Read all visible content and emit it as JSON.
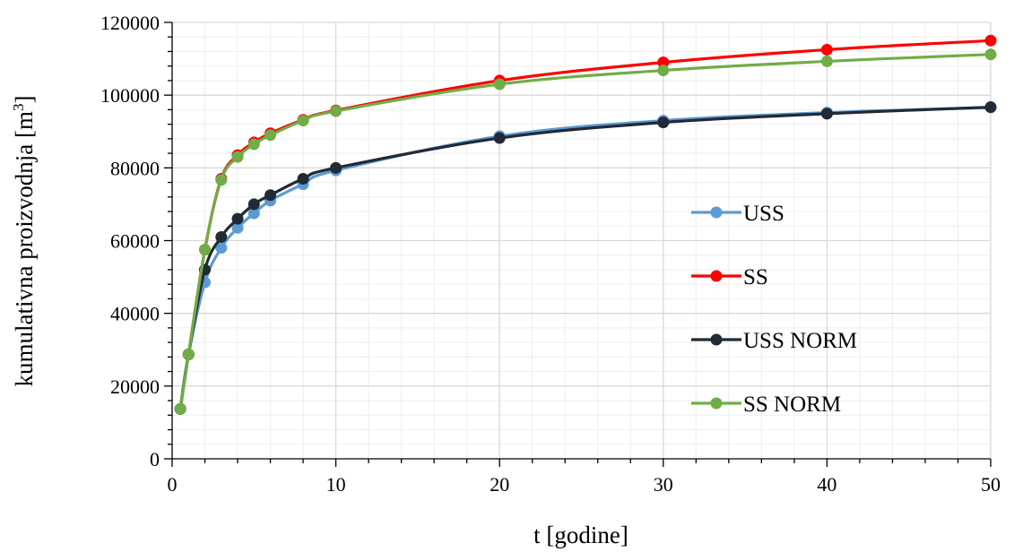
{
  "chart_data": {
    "type": "line",
    "title": "",
    "xlabel": "t [godine]",
    "ylabel_main": "kumulativna proizvodnja [m",
    "ylabel_sup": "3",
    "ylabel_end": "]",
    "xlim": [
      0,
      50
    ],
    "ylim": [
      0,
      120000
    ],
    "x_ticks": [
      0,
      10,
      20,
      30,
      40,
      50
    ],
    "x_tick_labels": [
      "0",
      "10",
      "20",
      "30",
      "40",
      "50"
    ],
    "y_ticks": [
      0,
      20000,
      40000,
      60000,
      80000,
      100000,
      120000
    ],
    "y_tick_labels": [
      "0",
      "20000",
      "40000",
      "60000",
      "80000",
      "100000",
      "120000"
    ],
    "grid": true,
    "legend_position": "right",
    "x": [
      0.5,
      1,
      2,
      3,
      4,
      5,
      6,
      8,
      10,
      20,
      30,
      40,
      50
    ],
    "series": [
      {
        "name": "USS",
        "color": "#5b9bd5",
        "values": [
          13700,
          28700,
          48500,
          58000,
          63500,
          67500,
          71000,
          75500,
          79300,
          88700,
          93000,
          95200,
          96600
        ]
      },
      {
        "name": "SS",
        "color": "#ff0000",
        "values": [
          13700,
          28700,
          57500,
          77000,
          83500,
          87000,
          89500,
          93200,
          95800,
          104000,
          109000,
          112500,
          115000
        ]
      },
      {
        "name": "USS NORM",
        "color": "#222a35",
        "values": [
          13700,
          28700,
          52000,
          61000,
          66000,
          70000,
          72500,
          77000,
          80000,
          88200,
          92500,
          94900,
          96700
        ]
      },
      {
        "name": "SS NORM",
        "color": "#70ad47",
        "values": [
          13700,
          28700,
          57500,
          76700,
          83000,
          86500,
          89000,
          93000,
          95600,
          103000,
          106800,
          109300,
          111200
        ]
      }
    ]
  }
}
